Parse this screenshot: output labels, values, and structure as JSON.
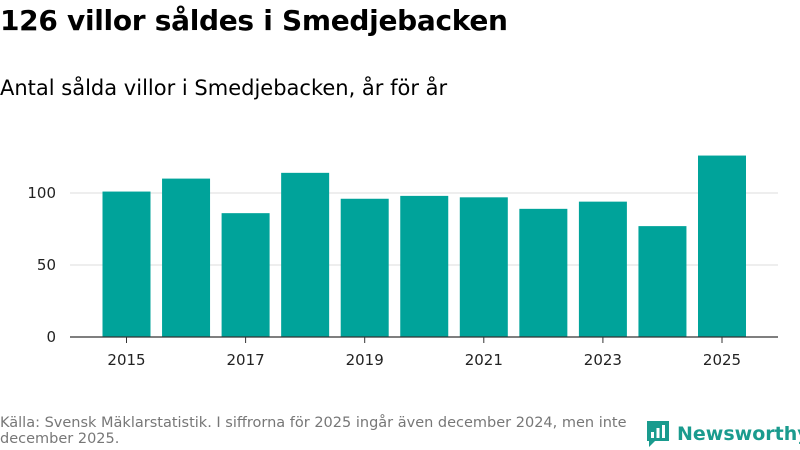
{
  "header": {
    "title": "126 villor såldes i Smedjebacken",
    "subtitle": "Antal sålda villor i Smedjebacken, år för år"
  },
  "footer": {
    "source": "Källa: Svensk Mäklarstatistik. I siffrorna för 2025 ingår även december 2024, men inte december 2025.",
    "brand": "Newsworthy",
    "brand_icon": "newsworthy-logo-icon"
  },
  "colors": {
    "bar": "#00a39a",
    "grid": "#dddddd",
    "axis": "#333333",
    "brand": "#1a9b8e"
  },
  "chart_data": {
    "type": "bar",
    "title": "126 villor såldes i Smedjebacken",
    "subtitle": "Antal sålda villor i Smedjebacken, år för år",
    "xlabel": "",
    "ylabel": "",
    "categories": [
      "2015",
      "2016",
      "2017",
      "2018",
      "2019",
      "2020",
      "2021",
      "2022",
      "2023",
      "2024",
      "2025"
    ],
    "values": [
      101,
      110,
      86,
      114,
      96,
      98,
      97,
      89,
      94,
      77,
      126
    ],
    "x_tick_labels": [
      "2015",
      "2017",
      "2019",
      "2021",
      "2023",
      "2025"
    ],
    "y_ticks": [
      0,
      50,
      100
    ],
    "ylim": [
      0,
      130
    ],
    "grid": true
  }
}
